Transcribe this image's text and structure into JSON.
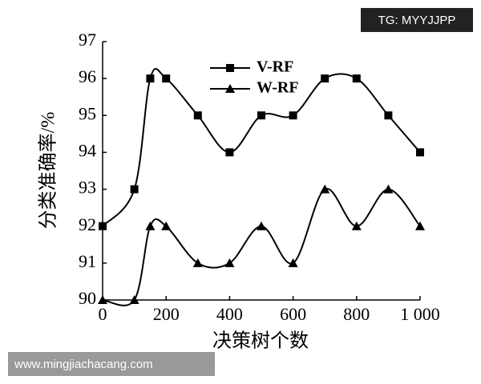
{
  "chart_data": {
    "type": "line",
    "x": [
      0,
      100,
      150,
      200,
      300,
      400,
      500,
      600,
      700,
      800,
      900,
      1000
    ],
    "series": [
      {
        "name": "V-RF",
        "color": "#000000",
        "marker": "square",
        "values": [
          92,
          93,
          96,
          96,
          95,
          94,
          95,
          95,
          96,
          96,
          95,
          94
        ]
      },
      {
        "name": "W-RF",
        "color": "#000000",
        "marker": "triangle",
        "values": [
          90,
          90,
          92,
          92,
          91,
          91,
          92,
          91,
          93,
          92,
          93,
          92
        ]
      }
    ],
    "xlabel": "决策树个数",
    "ylabel": "分类准确率/%",
    "xlim": [
      0,
      1000
    ],
    "xticks": [
      0,
      200,
      400,
      600,
      800,
      {
        "value": 1000,
        "label": "1 000"
      }
    ],
    "ylim": [
      90,
      97
    ],
    "yticks": [
      90,
      91,
      92,
      93,
      94,
      95,
      96,
      97
    ],
    "smooth": true,
    "legend": "top"
  },
  "watermarks": {
    "top": "TG: MYYJJPP",
    "bottom": "www.mingjiachacang.com"
  }
}
